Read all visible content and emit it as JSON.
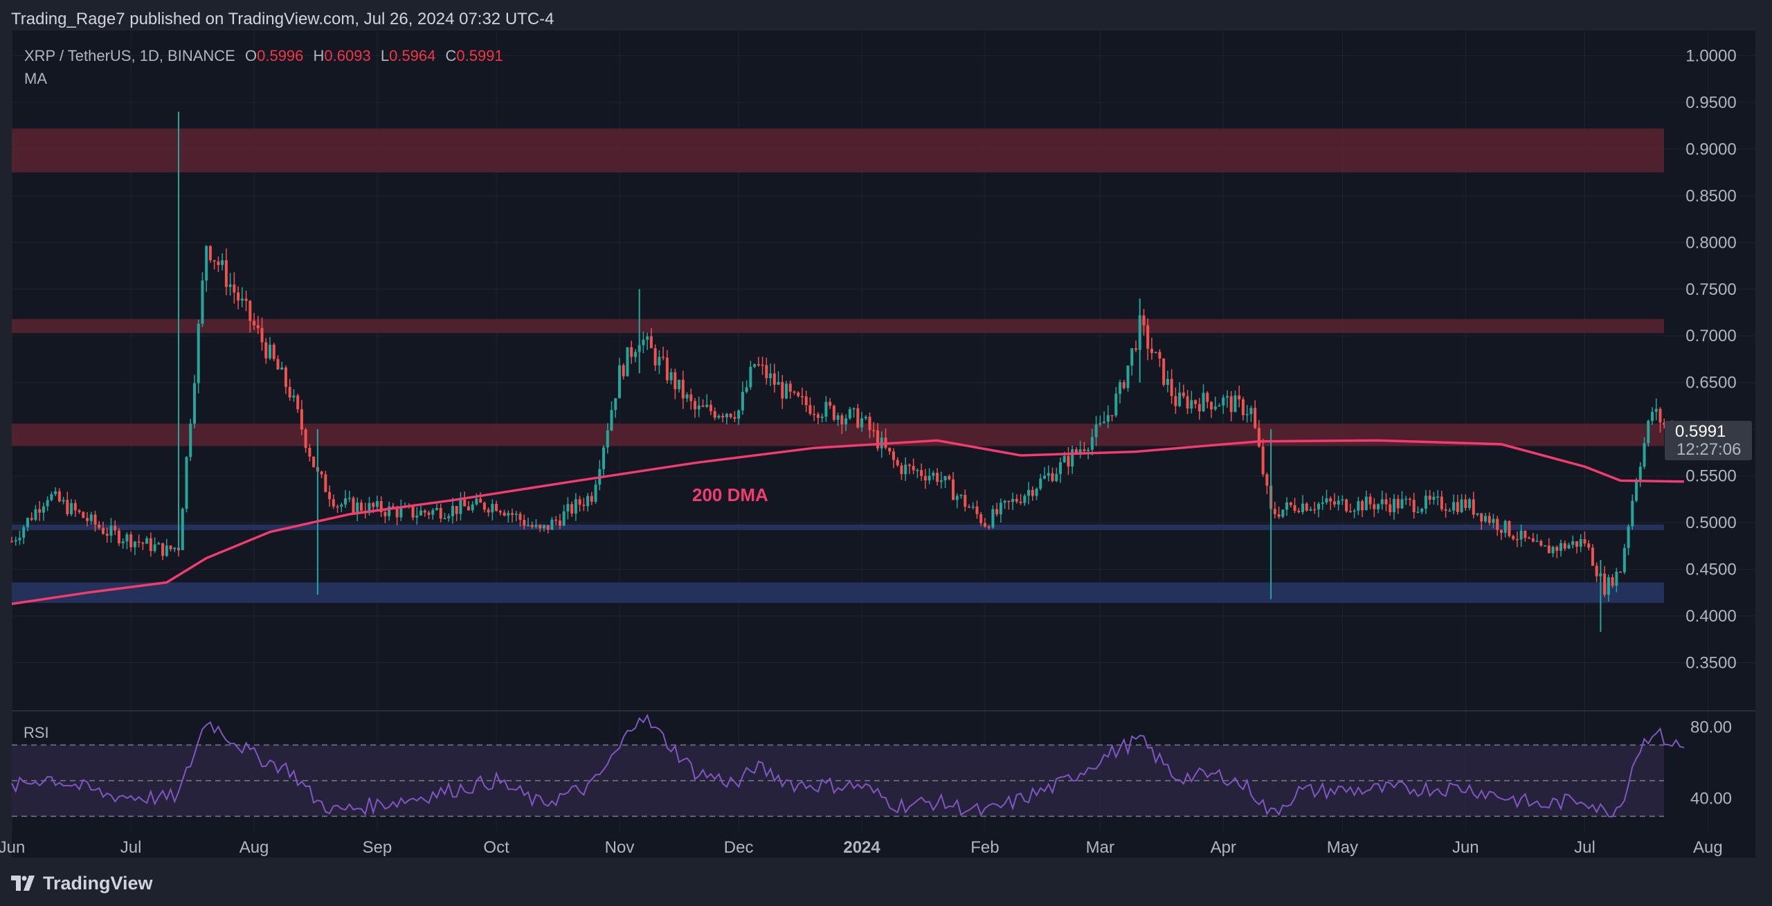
{
  "header": {
    "published": "Trading_Rage7 published on TradingView.com, Jul 26, 2024 07:32 UTC-4"
  },
  "legend": {
    "symbol": "XRP / TetherUS, 1D, BINANCE",
    "open_label": "O",
    "open": "0.5996",
    "high_label": "H",
    "high": "0.6093",
    "low_label": "L",
    "low": "0.5964",
    "close_label": "C",
    "close": "0.5991",
    "indicator": "MA"
  },
  "price_tag": {
    "price": "0.5991",
    "countdown": "12:27:06"
  },
  "rsi_label": "RSI",
  "footer": {
    "brand": "TradingView"
  },
  "colors": {
    "up": "#26a69a",
    "down": "#ef5350",
    "ma": "#f23b6e",
    "resistance_zone": "#5b2330",
    "support_zone": "#25335f",
    "rsi_line": "#7e57c2",
    "rsi_band": "#2a2540"
  },
  "chart_data": {
    "type": "candlestick",
    "annotation": "200 DMA",
    "y_axis": {
      "ticks": [
        "1.0000",
        "0.9500",
        "0.9000",
        "0.8500",
        "0.8000",
        "0.7500",
        "0.7000",
        "0.6500",
        "0.6000",
        "0.5500",
        "0.5000",
        "0.4500",
        "0.4000",
        "0.3500"
      ],
      "range": [
        0.32,
        1.0
      ]
    },
    "x_axis": {
      "ticks": [
        "Jun",
        "Jul",
        "Aug",
        "Sep",
        "Oct",
        "Nov",
        "Dec",
        "2024",
        "Feb",
        "Mar",
        "Apr",
        "May",
        "Jun",
        "Jul",
        "Aug"
      ],
      "range": [
        "2023-06-01",
        "2024-08-10"
      ]
    },
    "zones": [
      {
        "kind": "resistance",
        "low": 0.875,
        "high": 0.922
      },
      {
        "kind": "resistance",
        "low": 0.703,
        "high": 0.718
      },
      {
        "kind": "resistance",
        "low": 0.582,
        "high": 0.606
      },
      {
        "kind": "support",
        "low": 0.492,
        "high": 0.498
      },
      {
        "kind": "support",
        "low": 0.414,
        "high": 0.436
      }
    ],
    "price_path": {
      "dates": [
        "2023-06-01",
        "2023-06-10",
        "2023-06-25",
        "2023-07-10",
        "2023-07-13",
        "2023-07-20",
        "2023-08-01",
        "2023-08-10",
        "2023-08-17",
        "2023-08-22",
        "2023-09-10",
        "2023-10-01",
        "2023-10-12",
        "2023-10-25",
        "2023-11-01",
        "2023-11-06",
        "2023-11-20",
        "2023-12-01",
        "2023-12-05",
        "2023-12-15",
        "2024-01-01",
        "2024-01-10",
        "2024-01-20",
        "2024-02-01",
        "2024-02-20",
        "2024-03-01",
        "2024-03-06",
        "2024-03-11",
        "2024-03-20",
        "2024-04-01",
        "2024-04-08",
        "2024-04-13",
        "2024-04-20",
        "2024-05-10",
        "2024-06-01",
        "2024-06-20",
        "2024-07-01",
        "2024-07-06",
        "2024-07-10",
        "2024-07-14",
        "2024-07-18",
        "2024-07-22",
        "2024-07-26"
      ],
      "values": [
        0.48,
        0.53,
        0.49,
        0.47,
        0.475,
        0.8,
        0.71,
        0.64,
        0.55,
        0.52,
        0.51,
        0.52,
        0.49,
        0.53,
        0.66,
        0.7,
        0.62,
        0.62,
        0.67,
        0.63,
        0.61,
        0.56,
        0.55,
        0.5,
        0.56,
        0.6,
        0.64,
        0.71,
        0.63,
        0.63,
        0.62,
        0.51,
        0.52,
        0.52,
        0.52,
        0.47,
        0.48,
        0.43,
        0.45,
        0.55,
        0.62,
        0.6,
        0.599
      ]
    },
    "wicks": [
      {
        "date": "2023-07-13",
        "high": 0.94,
        "low": 0.47
      },
      {
        "date": "2023-08-17",
        "high": 0.6,
        "low": 0.423
      },
      {
        "date": "2023-11-06",
        "high": 0.75,
        "low": 0.66
      },
      {
        "date": "2024-03-11",
        "high": 0.74,
        "low": 0.65
      },
      {
        "date": "2024-04-13",
        "high": 0.6,
        "low": 0.418
      },
      {
        "date": "2024-07-05",
        "high": 0.46,
        "low": 0.383
      }
    ],
    "series": [
      {
        "name": "200 DMA",
        "dates": [
          "2023-06-01",
          "2023-06-20",
          "2023-07-10",
          "2023-07-20",
          "2023-08-05",
          "2023-08-25",
          "2023-09-20",
          "2023-10-20",
          "2023-11-20",
          "2023-12-20",
          "2024-01-20",
          "2024-02-10",
          "2024-03-10",
          "2024-04-10",
          "2024-05-10",
          "2024-06-10",
          "2024-07-01",
          "2024-07-10",
          "2024-07-26"
        ],
        "values": [
          0.413,
          0.425,
          0.436,
          0.462,
          0.49,
          0.509,
          0.524,
          0.544,
          0.564,
          0.58,
          0.588,
          0.572,
          0.576,
          0.587,
          0.588,
          0.584,
          0.56,
          0.545,
          0.544
        ]
      }
    ],
    "rsi": {
      "levels": [
        70,
        50,
        30
      ],
      "y_ticks": [
        "80.00",
        "40.00"
      ],
      "dates": [
        "2023-06-01",
        "2023-06-10",
        "2023-06-25",
        "2023-07-10",
        "2023-07-13",
        "2023-07-20",
        "2023-08-01",
        "2023-08-10",
        "2023-08-17",
        "2023-08-22",
        "2023-09-10",
        "2023-10-01",
        "2023-10-12",
        "2023-10-25",
        "2023-11-01",
        "2023-11-06",
        "2023-11-20",
        "2023-12-01",
        "2023-12-05",
        "2023-12-15",
        "2024-01-01",
        "2024-01-10",
        "2024-01-20",
        "2024-02-01",
        "2024-02-20",
        "2024-03-01",
        "2024-03-06",
        "2024-03-11",
        "2024-03-20",
        "2024-04-01",
        "2024-04-08",
        "2024-04-13",
        "2024-04-20",
        "2024-05-10",
        "2024-06-01",
        "2024-06-20",
        "2024-07-01",
        "2024-07-06",
        "2024-07-10",
        "2024-07-14",
        "2024-07-18",
        "2024-07-22",
        "2024-07-26"
      ],
      "values": [
        46,
        52,
        42,
        40,
        42,
        84,
        64,
        56,
        38,
        33,
        40,
        50,
        37,
        47,
        68,
        88,
        55,
        48,
        58,
        48,
        47,
        36,
        38,
        32,
        48,
        62,
        68,
        73,
        52,
        53,
        45,
        31,
        44,
        45,
        46,
        36,
        40,
        32,
        36,
        65,
        78,
        72,
        68
      ]
    }
  }
}
